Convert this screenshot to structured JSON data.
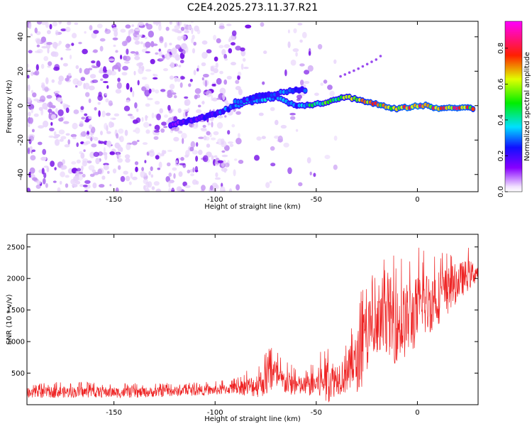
{
  "title": "C2E4.2025.273.11.37.R21",
  "chart_data": [
    {
      "type": "heatmap",
      "name": "spectrogram",
      "xlabel": "Height of straight line (km)",
      "ylabel": "Frequency (Hz)",
      "xlim": [
        -193,
        30
      ],
      "ylim": [
        -50,
        49
      ],
      "xticks": [
        -150,
        -100,
        -50,
        0
      ],
      "xtick_labels": [
        "-150",
        "-100",
        "-50",
        "0"
      ],
      "yticks": [
        40,
        20,
        0,
        -20,
        -40
      ],
      "ytick_labels": [
        "40",
        "20",
        "0",
        "-20",
        "-40"
      ],
      "colorbar": {
        "label": "Normalized spectral amplitude",
        "range": [
          0,
          0.95
        ],
        "ticks": [
          0.0,
          0.2,
          0.4,
          0.6,
          0.8
        ],
        "tick_labels": [
          "0.0",
          "0.2",
          "0.4",
          "0.6",
          "0.8"
        ],
        "colormap": "rainbow (white-violet-blue-cyan-green-yellow-red-magenta)"
      },
      "ridge": {
        "x": [
          -122,
          -110,
          -100,
          -90,
          -80,
          -70,
          -60,
          -50,
          -45,
          -40,
          -35,
          -30,
          -25,
          -20,
          -15,
          -10,
          -5,
          0,
          5,
          10,
          15,
          20,
          25,
          28
        ],
        "y": [
          -11,
          -8,
          -5,
          0,
          3,
          5,
          0,
          1,
          2,
          4,
          5,
          4,
          2,
          1,
          -1,
          -2,
          -1,
          0,
          0,
          -2,
          -1,
          -1,
          -1,
          -2
        ],
        "amplitude": [
          0.2,
          0.25,
          0.3,
          0.4,
          0.45,
          0.4,
          0.35,
          0.55,
          0.6,
          0.65,
          0.7,
          0.75,
          0.8,
          0.85,
          0.85,
          0.8,
          0.9,
          0.9,
          0.85,
          0.9,
          0.85,
          0.9,
          0.85,
          0.8
        ]
      },
      "upper_branch": {
        "x": [
          -90,
          -80,
          -70,
          -65,
          -60,
          -55
        ],
        "y": [
          2,
          5,
          7,
          8,
          9,
          9
        ]
      },
      "drift_line": {
        "x": [
          -38,
          -30,
          -25,
          -20,
          -17
        ],
        "y": [
          17,
          21,
          24,
          27,
          30
        ]
      }
    },
    {
      "type": "line",
      "name": "snr",
      "xlabel": "Height of straight line (km)",
      "ylabel": "SNR (10 * v/v)",
      "xlim": [
        -193,
        30
      ],
      "ylim": [
        0,
        2700
      ],
      "xticks": [
        -150,
        -100,
        -50,
        0
      ],
      "xtick_labels": [
        "-150",
        "-100",
        "-50",
        "0"
      ],
      "yticks": [
        500,
        1000,
        1500,
        2000,
        2500
      ],
      "ytick_labels": [
        "500",
        "1000",
        "1500",
        "2000",
        "2500"
      ],
      "color": "#ee2222",
      "envelope": {
        "x": [
          -193,
          -180,
          -160,
          -140,
          -120,
          -100,
          -90,
          -80,
          -75,
          -71,
          -68,
          -60,
          -55,
          -50,
          -45,
          -40,
          -35,
          -30,
          -27,
          -24,
          -22,
          -20,
          -17,
          -15,
          -12,
          -10,
          -7,
          -5,
          -2,
          0,
          5,
          10,
          15,
          20,
          25,
          30
        ],
        "mean": [
          180,
          200,
          200,
          190,
          210,
          230,
          260,
          300,
          380,
          500,
          380,
          300,
          290,
          330,
          380,
          420,
          500,
          650,
          900,
          1150,
          1100,
          1150,
          1250,
          1500,
          1300,
          1250,
          1300,
          1350,
          1400,
          1500,
          1600,
          1700,
          1800,
          1950,
          2050,
          2100
        ],
        "peak": [
          330,
          360,
          360,
          340,
          350,
          370,
          420,
          640,
          830,
          1060,
          760,
          600,
          560,
          720,
          1060,
          900,
          1100,
          1480,
          2000,
          2270,
          2100,
          2150,
          2200,
          2660,
          2500,
          2300,
          2400,
          2400,
          2450,
          2500,
          2550,
          2500,
          2500,
          2500,
          2500,
          2350
        ]
      }
    }
  ]
}
